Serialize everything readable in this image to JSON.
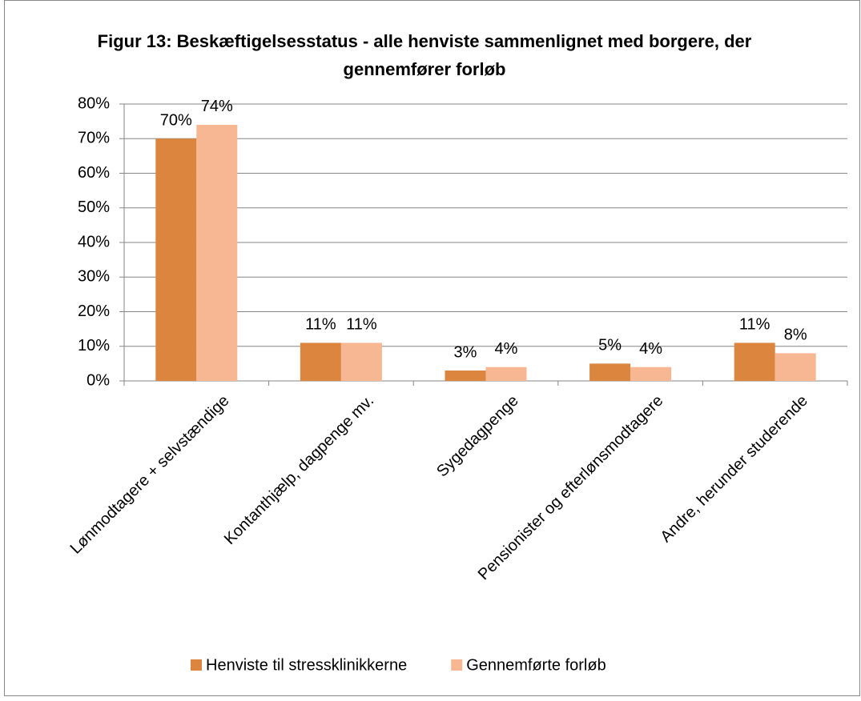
{
  "chart_data": {
    "type": "bar",
    "title": "Figur 13: Beskæftigelsesstatus - alle henviste sammenlignet med borgere, der gennemfører forløb",
    "categories": [
      "Lønmodtagere + selvstændige",
      "Kontanthjælp, dagpenge mv.",
      "Sygedagpenge",
      "Pensionister og efterlønsmodtagere",
      "Andre, herunder studerende"
    ],
    "series": [
      {
        "name": "Henviste til stressklinikkerne",
        "color": "#dc853f",
        "values": [
          70,
          11,
          3,
          5,
          11
        ],
        "value_labels": [
          "70%",
          "11%",
          "3%",
          "5%",
          "11%"
        ]
      },
      {
        "name": "Gennemførte forløb",
        "color": "#f8b793",
        "values": [
          74,
          11,
          4,
          4,
          8
        ],
        "value_labels": [
          "74%",
          "11%",
          "4%",
          "4%",
          "8%"
        ]
      }
    ],
    "ylim": [
      0,
      80
    ],
    "yticks": [
      {
        "value": 0,
        "label": "0%"
      },
      {
        "value": 10,
        "label": "10%"
      },
      {
        "value": 20,
        "label": "20%"
      },
      {
        "value": 30,
        "label": "30%"
      },
      {
        "value": 40,
        "label": "40%"
      },
      {
        "value": 50,
        "label": "50%"
      },
      {
        "value": 60,
        "label": "60%"
      },
      {
        "value": 70,
        "label": "70%"
      },
      {
        "value": 80,
        "label": "80%"
      }
    ],
    "grid": true,
    "legend": "bottom"
  }
}
